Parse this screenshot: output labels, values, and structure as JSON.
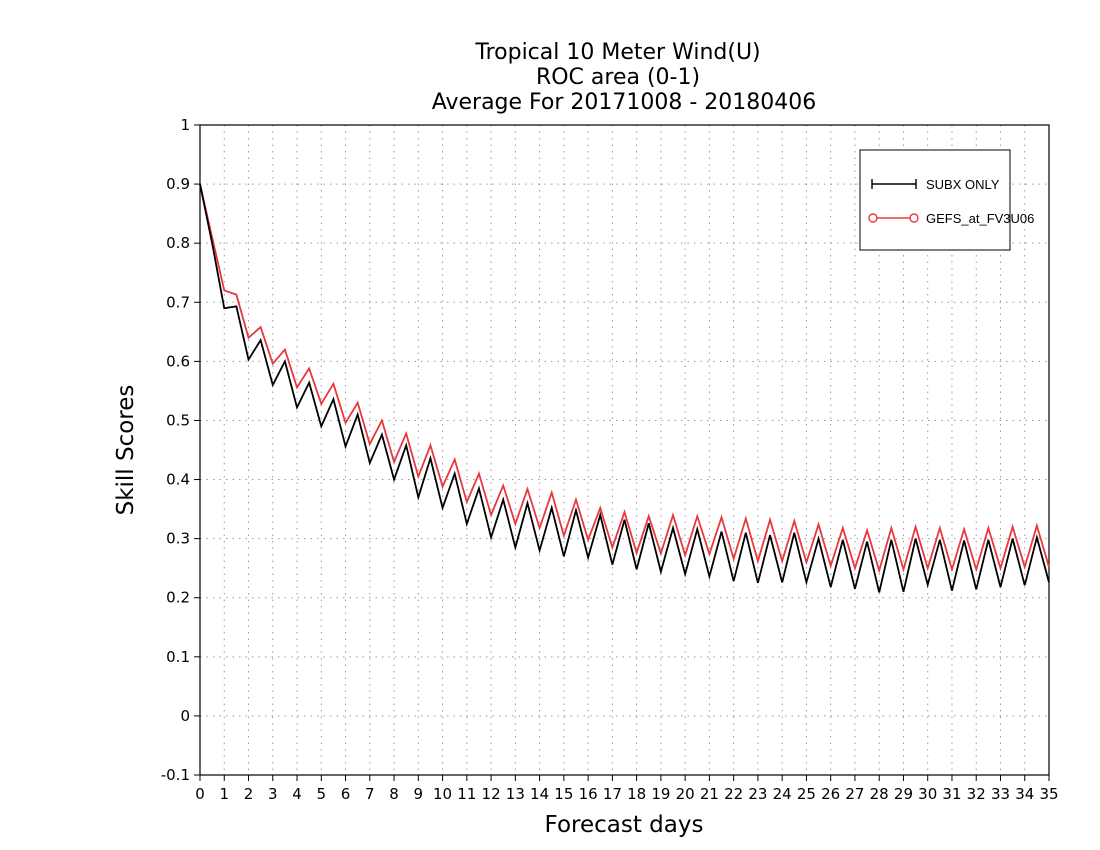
{
  "chart_data": {
    "type": "line",
    "title_lines": [
      "Tropical 10 Meter Wind(U)",
      "ROC area (0-1)",
      "Average For 20171008 - 20180406"
    ],
    "xlabel": "Forecast days",
    "ylabel": "Skill Scores",
    "xlim": [
      0,
      35
    ],
    "ylim": [
      -0.1,
      1
    ],
    "x_ticks": [
      0,
      1,
      2,
      3,
      4,
      5,
      6,
      7,
      8,
      9,
      10,
      11,
      12,
      13,
      14,
      15,
      16,
      17,
      18,
      19,
      20,
      21,
      22,
      23,
      24,
      25,
      26,
      27,
      28,
      29,
      30,
      31,
      32,
      33,
      34,
      35
    ],
    "y_ticks": [
      "-0.1",
      "0",
      "0.1",
      "0.2",
      "0.3",
      "0.4",
      "0.5",
      "0.6",
      "0.7",
      "0.8",
      "0.9",
      "1"
    ],
    "grid": true,
    "legend_position": "top-right",
    "x": [
      0,
      0.5,
      1,
      1.5,
      2,
      2.5,
      3,
      3.5,
      4,
      4.5,
      5,
      5.5,
      6,
      6.5,
      7,
      7.5,
      8,
      8.5,
      9,
      9.5,
      10,
      10.5,
      11,
      11.5,
      12,
      12.5,
      13,
      13.5,
      14,
      14.5,
      15,
      15.5,
      16,
      16.5,
      17,
      17.5,
      18,
      18.5,
      19,
      19.5,
      20,
      20.5,
      21,
      21.5,
      22,
      22.5,
      23,
      23.5,
      24,
      24.5,
      25,
      25.5,
      26,
      26.5,
      27,
      27.5,
      28,
      28.5,
      29,
      29.5,
      30,
      30.5,
      31,
      31.5,
      32,
      32.5,
      33,
      33.5,
      34,
      34.5,
      35
    ],
    "series": [
      {
        "name": "SUBX ONLY",
        "color": "#000000",
        "marker": "plus",
        "values": [
          0.9,
          0.8,
          0.69,
          0.693,
          0.603,
          0.636,
          0.56,
          0.6,
          0.522,
          0.564,
          0.49,
          0.536,
          0.456,
          0.51,
          0.428,
          0.476,
          0.4,
          0.458,
          0.37,
          0.436,
          0.352,
          0.41,
          0.325,
          0.385,
          0.302,
          0.366,
          0.285,
          0.36,
          0.28,
          0.352,
          0.27,
          0.348,
          0.268,
          0.34,
          0.256,
          0.332,
          0.248,
          0.326,
          0.244,
          0.318,
          0.24,
          0.316,
          0.236,
          0.312,
          0.228,
          0.31,
          0.225,
          0.306,
          0.226,
          0.31,
          0.226,
          0.3,
          0.218,
          0.298,
          0.215,
          0.295,
          0.209,
          0.298,
          0.21,
          0.3,
          0.222,
          0.298,
          0.212,
          0.297,
          0.214,
          0.298,
          0.218,
          0.3,
          0.221,
          0.302,
          0.226
        ]
      },
      {
        "name": "GEFS_at_FV3U06",
        "color": "#e8383d",
        "marker": "circle",
        "values": [
          0.9,
          0.81,
          0.72,
          0.713,
          0.64,
          0.658,
          0.596,
          0.62,
          0.556,
          0.588,
          0.528,
          0.562,
          0.496,
          0.53,
          0.46,
          0.5,
          0.43,
          0.478,
          0.405,
          0.458,
          0.388,
          0.434,
          0.362,
          0.41,
          0.34,
          0.39,
          0.325,
          0.384,
          0.318,
          0.378,
          0.305,
          0.366,
          0.298,
          0.352,
          0.285,
          0.345,
          0.276,
          0.338,
          0.275,
          0.34,
          0.272,
          0.338,
          0.274,
          0.336,
          0.266,
          0.334,
          0.262,
          0.332,
          0.262,
          0.33,
          0.26,
          0.324,
          0.254,
          0.318,
          0.25,
          0.314,
          0.246,
          0.318,
          0.248,
          0.32,
          0.25,
          0.318,
          0.248,
          0.316,
          0.248,
          0.318,
          0.25,
          0.32,
          0.252,
          0.322,
          0.252
        ]
      }
    ]
  }
}
